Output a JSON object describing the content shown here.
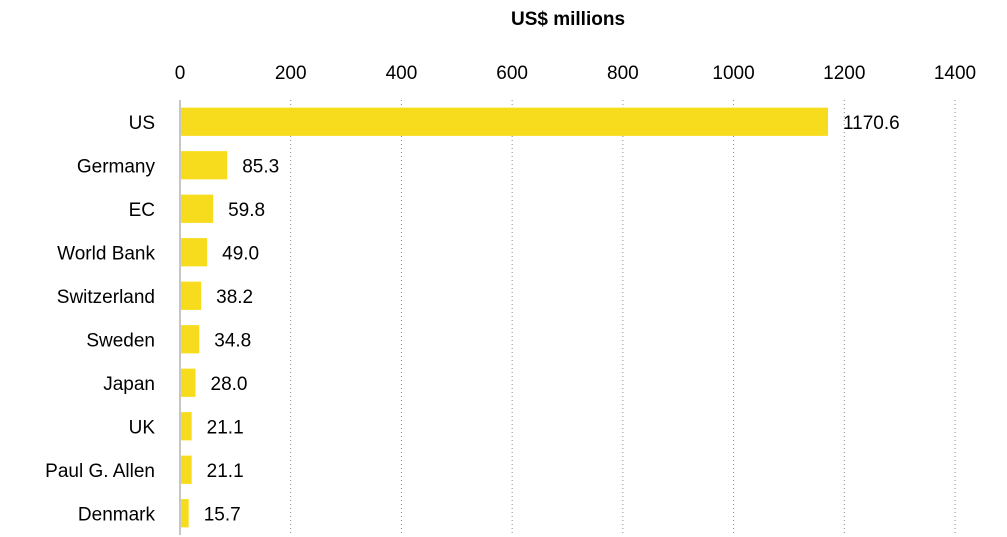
{
  "chart_data": {
    "type": "bar",
    "orientation": "horizontal",
    "xlabel": "US$ millions",
    "xlabel_position": "top",
    "xlim": [
      0,
      1400
    ],
    "x_ticks": [
      "0",
      "200",
      "400",
      "600",
      "800",
      "1000",
      "1200",
      "1400"
    ],
    "categories": [
      "US",
      "Germany",
      "EC",
      "World Bank",
      "Switzerland",
      "Sweden",
      "Japan",
      "UK",
      "Paul G. Allen",
      "Denmark"
    ],
    "values": [
      1170.6,
      85.3,
      59.8,
      49.0,
      38.2,
      34.8,
      28.0,
      21.1,
      21.1,
      15.7
    ],
    "value_labels": [
      "1170.6",
      "85.3",
      "59.8",
      "49.0",
      "38.2",
      "34.8",
      "28.0",
      "21.1",
      "21.1",
      "15.7"
    ],
    "bar_color": "#f7dc1e",
    "grid": "vertical dotted",
    "legend": "none"
  }
}
